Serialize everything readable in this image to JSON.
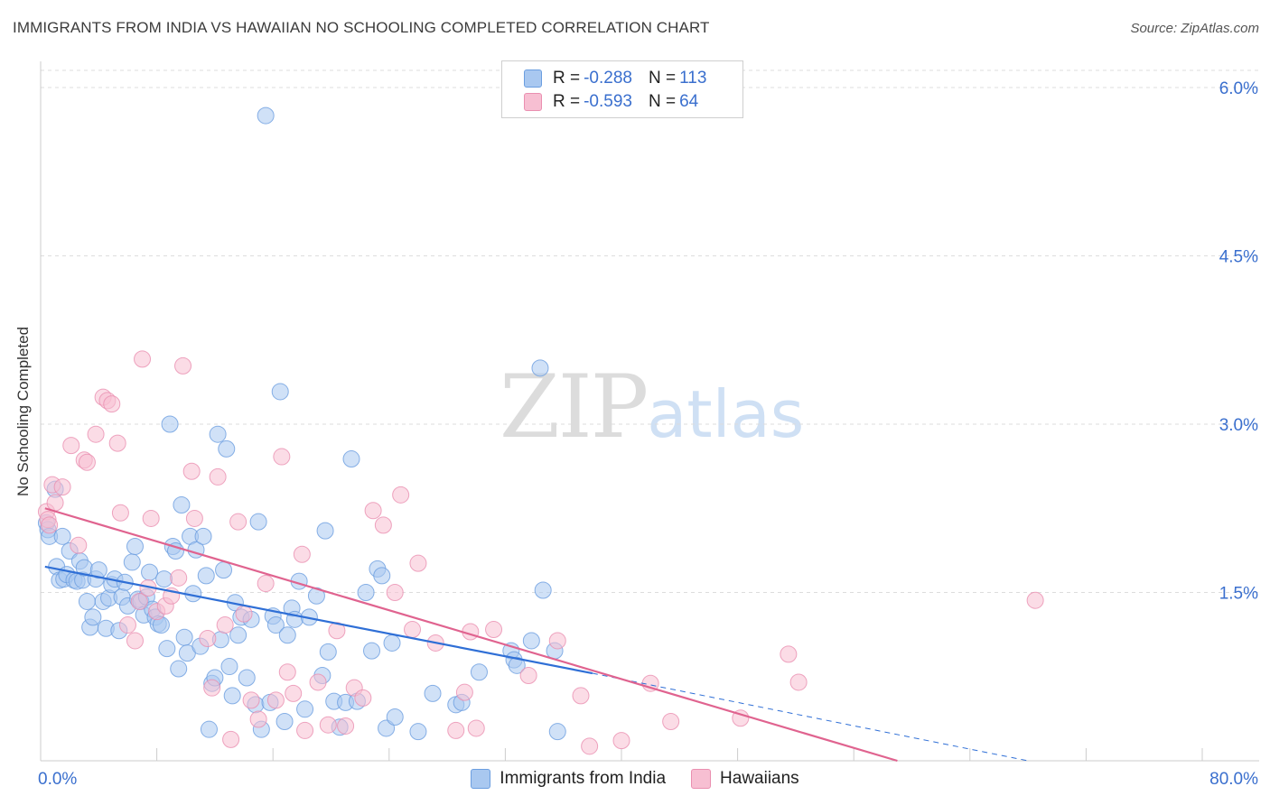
{
  "title": "IMMIGRANTS FROM INDIA VS HAWAIIAN NO SCHOOLING COMPLETED CORRELATION CHART",
  "source": "Source: ZipAtlas.com",
  "watermark": {
    "zip": "ZIP",
    "atlas": "atlas"
  },
  "legend_top": [
    {
      "r_label": "R = ",
      "r_value": "-0.288",
      "n_label": "N = ",
      "n_value": "113"
    },
    {
      "r_label": "R = ",
      "r_value": "-0.593",
      "n_label": "N = ",
      "n_value": "64"
    }
  ],
  "legend_bottom": [
    "Immigrants from India",
    "Hawaiians"
  ],
  "x_tick_left": "0.0%",
  "x_tick_right": "80.0%",
  "chart_data": {
    "type": "scatter",
    "xlabel": "",
    "ylabel": "No Schooling Completed",
    "xlim": [
      0,
      80
    ],
    "ylim": [
      0,
      6.3
    ],
    "y_ticks": [
      {
        "value": 1.5,
        "label": "1.5%"
      },
      {
        "value": 3.0,
        "label": "3.0%"
      },
      {
        "value": 4.5,
        "label": "4.5%"
      },
      {
        "value": 6.0,
        "label": "6.0%"
      }
    ],
    "grid": true,
    "legend": "top-center",
    "colors": {
      "india_fill": "#a9c8f0",
      "india_stroke": "#6b9ee0",
      "india_line": "#2f6fd6",
      "hawaiian_fill": "#f7bfd2",
      "hawaiian_stroke": "#ea8fb0",
      "hawaiian_line": "#e0638f"
    },
    "series": [
      {
        "name": "Immigrants from India",
        "color": "#a9c8f0",
        "trend": {
          "x": [
            0.3,
            38.0
          ],
          "y": [
            1.73,
            0.78
          ],
          "dashed_to": [
            68.0,
            0.0
          ]
        },
        "points": [
          [
            0.4,
            2.12
          ],
          [
            0.5,
            2.06
          ],
          [
            0.6,
            2.0
          ],
          [
            1.0,
            2.42
          ],
          [
            1.1,
            1.73
          ],
          [
            1.3,
            1.61
          ],
          [
            1.5,
            2.0
          ],
          [
            1.6,
            1.62
          ],
          [
            1.8,
            1.66
          ],
          [
            2.0,
            1.87
          ],
          [
            2.3,
            1.61
          ],
          [
            2.5,
            1.6
          ],
          [
            2.7,
            1.78
          ],
          [
            2.9,
            1.61
          ],
          [
            3.0,
            1.72
          ],
          [
            3.2,
            1.42
          ],
          [
            3.4,
            1.19
          ],
          [
            3.6,
            1.28
          ],
          [
            3.8,
            1.62
          ],
          [
            4.0,
            1.7
          ],
          [
            4.3,
            1.42
          ],
          [
            4.5,
            1.18
          ],
          [
            4.7,
            1.45
          ],
          [
            4.9,
            1.57
          ],
          [
            5.1,
            1.62
          ],
          [
            5.4,
            1.16
          ],
          [
            5.6,
            1.46
          ],
          [
            5.8,
            1.59
          ],
          [
            6.0,
            1.38
          ],
          [
            6.3,
            1.77
          ],
          [
            6.5,
            1.91
          ],
          [
            6.7,
            1.44
          ],
          [
            6.9,
            1.42
          ],
          [
            7.1,
            1.3
          ],
          [
            7.3,
            1.46
          ],
          [
            7.5,
            1.68
          ],
          [
            7.7,
            1.35
          ],
          [
            7.9,
            1.28
          ],
          [
            8.1,
            1.22
          ],
          [
            8.3,
            1.21
          ],
          [
            8.5,
            1.62
          ],
          [
            8.7,
            1.0
          ],
          [
            8.9,
            3.0
          ],
          [
            9.1,
            1.91
          ],
          [
            9.3,
            1.87
          ],
          [
            9.5,
            0.82
          ],
          [
            9.7,
            2.28
          ],
          [
            9.9,
            1.1
          ],
          [
            10.1,
            0.96
          ],
          [
            10.3,
            2.0
          ],
          [
            10.5,
            1.49
          ],
          [
            10.7,
            1.88
          ],
          [
            11.0,
            1.02
          ],
          [
            11.2,
            2.0
          ],
          [
            11.4,
            1.65
          ],
          [
            11.6,
            0.28
          ],
          [
            11.8,
            0.69
          ],
          [
            12.0,
            0.74
          ],
          [
            12.2,
            2.91
          ],
          [
            12.4,
            1.08
          ],
          [
            12.6,
            1.7
          ],
          [
            12.8,
            2.78
          ],
          [
            13.0,
            0.84
          ],
          [
            13.2,
            0.58
          ],
          [
            13.4,
            1.41
          ],
          [
            13.6,
            1.12
          ],
          [
            13.8,
            1.28
          ],
          [
            14.2,
            0.74
          ],
          [
            14.5,
            1.26
          ],
          [
            14.8,
            0.5
          ],
          [
            15.0,
            2.13
          ],
          [
            15.2,
            0.28
          ],
          [
            15.5,
            5.75
          ],
          [
            15.8,
            0.52
          ],
          [
            16.0,
            1.29
          ],
          [
            16.2,
            1.21
          ],
          [
            16.5,
            3.29
          ],
          [
            16.8,
            0.35
          ],
          [
            17.0,
            1.12
          ],
          [
            17.3,
            1.36
          ],
          [
            17.5,
            1.26
          ],
          [
            17.8,
            1.6
          ],
          [
            18.2,
            0.46
          ],
          [
            18.5,
            1.28
          ],
          [
            19.0,
            1.47
          ],
          [
            19.4,
            0.76
          ],
          [
            19.6,
            2.05
          ],
          [
            19.8,
            0.97
          ],
          [
            20.2,
            0.53
          ],
          [
            20.6,
            0.3
          ],
          [
            21.0,
            0.52
          ],
          [
            21.4,
            2.69
          ],
          [
            21.8,
            0.53
          ],
          [
            22.4,
            1.5
          ],
          [
            22.8,
            0.98
          ],
          [
            23.2,
            1.71
          ],
          [
            23.5,
            1.65
          ],
          [
            23.8,
            0.29
          ],
          [
            24.2,
            1.05
          ],
          [
            24.4,
            0.39
          ],
          [
            26.0,
            0.26
          ],
          [
            27.0,
            0.6
          ],
          [
            28.6,
            0.5
          ],
          [
            29.0,
            0.52
          ],
          [
            30.2,
            0.79
          ],
          [
            32.4,
            0.98
          ],
          [
            32.6,
            0.9
          ],
          [
            32.8,
            0.85
          ],
          [
            33.8,
            1.07
          ],
          [
            34.4,
            3.5
          ],
          [
            34.6,
            1.52
          ],
          [
            35.4,
            0.98
          ],
          [
            35.6,
            0.26
          ]
        ]
      },
      {
        "name": "Hawaiians",
        "color": "#f7bfd2",
        "trend": {
          "x": [
            0.3,
            59.0
          ],
          "y": [
            2.25,
            0.0
          ]
        },
        "points": [
          [
            0.4,
            2.22
          ],
          [
            0.5,
            2.15
          ],
          [
            0.6,
            2.1
          ],
          [
            0.8,
            2.46
          ],
          [
            1.0,
            2.3
          ],
          [
            1.5,
            2.44
          ],
          [
            2.1,
            2.81
          ],
          [
            2.6,
            1.92
          ],
          [
            3.0,
            2.68
          ],
          [
            3.2,
            2.66
          ],
          [
            3.8,
            2.91
          ],
          [
            4.3,
            3.24
          ],
          [
            4.6,
            3.21
          ],
          [
            4.9,
            3.18
          ],
          [
            5.3,
            2.83
          ],
          [
            5.5,
            2.21
          ],
          [
            6.0,
            1.21
          ],
          [
            6.5,
            1.07
          ],
          [
            6.8,
            1.42
          ],
          [
            7.0,
            3.58
          ],
          [
            7.4,
            1.54
          ],
          [
            7.6,
            2.16
          ],
          [
            8.0,
            1.33
          ],
          [
            8.6,
            1.38
          ],
          [
            9.0,
            1.47
          ],
          [
            9.5,
            1.63
          ],
          [
            9.8,
            3.52
          ],
          [
            10.4,
            2.58
          ],
          [
            10.6,
            2.16
          ],
          [
            11.5,
            1.09
          ],
          [
            11.8,
            0.65
          ],
          [
            12.2,
            2.53
          ],
          [
            12.7,
            1.21
          ],
          [
            13.1,
            0.19
          ],
          [
            13.6,
            2.13
          ],
          [
            14.0,
            1.31
          ],
          [
            14.5,
            0.54
          ],
          [
            15.0,
            0.37
          ],
          [
            15.5,
            1.58
          ],
          [
            16.2,
            0.54
          ],
          [
            16.6,
            2.71
          ],
          [
            17.0,
            0.79
          ],
          [
            17.4,
            0.6
          ],
          [
            18.0,
            1.84
          ],
          [
            18.2,
            0.27
          ],
          [
            19.1,
            0.7
          ],
          [
            19.8,
            0.32
          ],
          [
            20.4,
            1.16
          ],
          [
            21.0,
            0.31
          ],
          [
            21.6,
            0.65
          ],
          [
            22.2,
            0.56
          ],
          [
            22.9,
            2.23
          ],
          [
            23.6,
            2.1
          ],
          [
            24.4,
            1.5
          ],
          [
            24.8,
            2.37
          ],
          [
            25.6,
            1.17
          ],
          [
            26.0,
            1.76
          ],
          [
            27.2,
            1.05
          ],
          [
            28.6,
            0.27
          ],
          [
            29.2,
            0.61
          ],
          [
            29.6,
            1.15
          ],
          [
            30.0,
            0.29
          ],
          [
            31.2,
            1.17
          ],
          [
            33.6,
            0.76
          ],
          [
            35.6,
            1.07
          ],
          [
            37.2,
            0.58
          ],
          [
            37.8,
            0.13
          ],
          [
            40.0,
            0.18
          ],
          [
            42.0,
            0.69
          ],
          [
            43.4,
            0.35
          ],
          [
            48.2,
            0.38
          ],
          [
            51.5,
            0.95
          ],
          [
            52.2,
            0.7
          ],
          [
            68.5,
            1.43
          ]
        ]
      }
    ]
  }
}
